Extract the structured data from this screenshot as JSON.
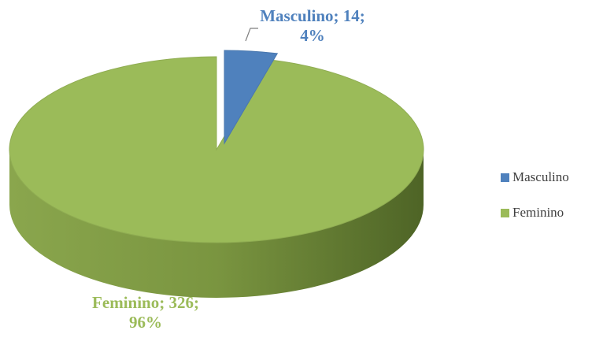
{
  "chart_data": {
    "type": "pie",
    "categories": [
      "Masculino",
      "Feminino"
    ],
    "values": [
      14,
      326
    ],
    "value_labels": [
      "Masculino; 14; 4%",
      "Feminino; 326; 96%"
    ],
    "colors": [
      "#4f81bd",
      "#9bbb59"
    ],
    "legend": "right"
  }
}
